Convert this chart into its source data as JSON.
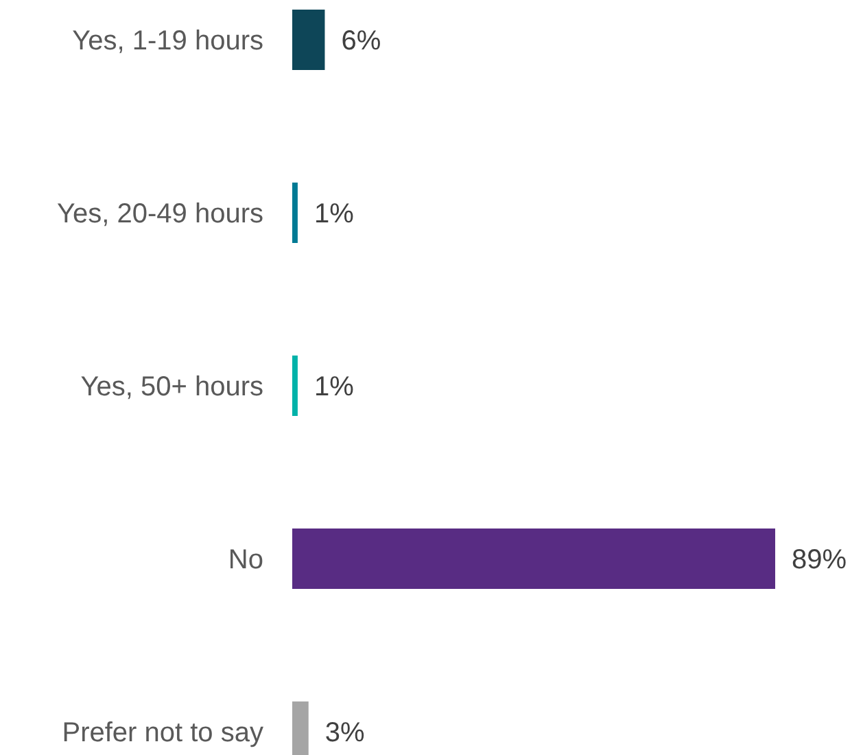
{
  "chart_data": {
    "type": "bar",
    "orientation": "horizontal",
    "categories": [
      "Yes, 1-19 hours",
      "Yes, 20-49 hours",
      "Yes, 50+ hours",
      "No",
      "Prefer not to say"
    ],
    "values": [
      6,
      1,
      1,
      89,
      3
    ],
    "colors": [
      "#0e4658",
      "#007a94",
      "#00b2a9",
      "#582c83",
      "#a5a5a5"
    ],
    "value_labels": [
      "6%",
      "1%",
      "1%",
      "89%",
      "3%"
    ]
  }
}
